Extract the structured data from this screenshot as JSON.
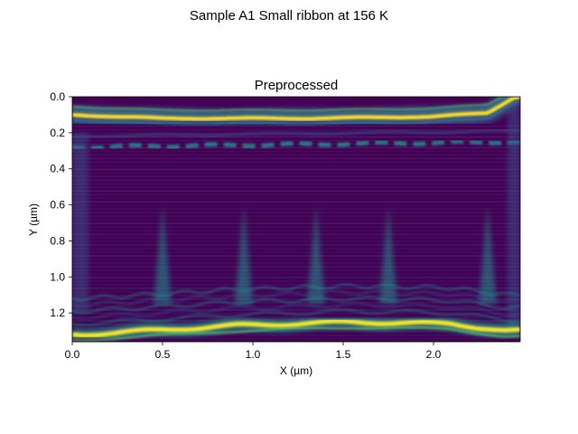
{
  "figure": {
    "suptitle": "Sample A1 Small ribbon at 156 K"
  },
  "chart_data": {
    "type": "heatmap",
    "title": "Preprocessed",
    "xlabel": "X (µm)",
    "ylabel": "Y (µm)",
    "xlim": [
      0.0,
      2.48
    ],
    "ylim": [
      1.36,
      0.0
    ],
    "x_ticks": [
      {
        "value": 0.0,
        "label": "0.0"
      },
      {
        "value": 0.5,
        "label": "0.5"
      },
      {
        "value": 1.0,
        "label": "1.0"
      },
      {
        "value": 1.5,
        "label": "1.5"
      },
      {
        "value": 2.0,
        "label": "2.0"
      }
    ],
    "y_ticks": [
      {
        "value": 0.0,
        "label": "0.0"
      },
      {
        "value": 0.2,
        "label": "0.2"
      },
      {
        "value": 0.4,
        "label": "0.4"
      },
      {
        "value": 0.6,
        "label": "0.6"
      },
      {
        "value": 0.8,
        "label": "0.8"
      },
      {
        "value": 1.0,
        "label": "1.0"
      },
      {
        "value": 1.2,
        "label": "1.2"
      }
    ],
    "colormap": [
      "#440154",
      "#3b528b",
      "#21918c",
      "#5ec962",
      "#fde725"
    ],
    "features": {
      "top_bright_band": {
        "y": [
          0.1,
          0.12,
          0.12,
          0.11,
          0.09,
          0.0
        ],
        "x": [
          0.0,
          0.5,
          1.3,
          2.0,
          2.3,
          2.45
        ]
      },
      "second_band": {
        "y": [
          0.28,
          0.27,
          0.26,
          0.25
        ],
        "x": [
          0.0,
          0.8,
          1.6,
          2.4
        ]
      },
      "bottom_bright_band": {
        "y": [
          1.32,
          1.3,
          1.27,
          1.25,
          1.26,
          1.3
        ],
        "x": [
          0.05,
          0.4,
          0.9,
          1.55,
          2.1,
          2.4
        ]
      },
      "vertical_streaks_x": [
        0.5,
        0.95,
        1.35,
        1.75,
        2.3
      ]
    }
  }
}
